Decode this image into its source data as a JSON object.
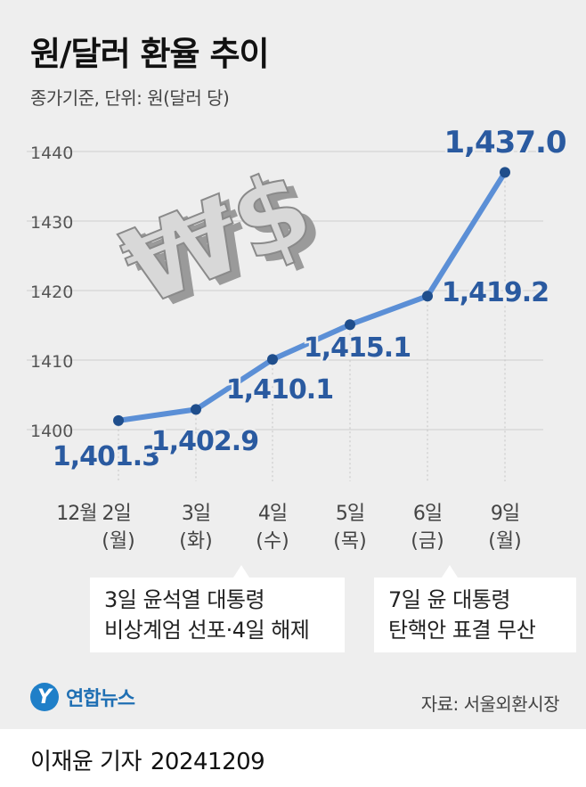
{
  "title": "원/달러 환율 추이",
  "subtitle": "종가기준, 단위: 원(달러 당)",
  "chart_data": {
    "type": "line",
    "x": [
      "12월 2일 (월)",
      "3일 (화)",
      "4일 (수)",
      "5일 (목)",
      "6일 (금)",
      "9일 (월)"
    ],
    "x_ticks": [
      {
        "line1": "12월 2일",
        "line2": "(월)"
      },
      {
        "line1": "3일",
        "line2": "(화)"
      },
      {
        "line1": "4일",
        "line2": "(수)"
      },
      {
        "line1": "5일",
        "line2": "(목)"
      },
      {
        "line1": "6일",
        "line2": "(금)"
      },
      {
        "line1": "9일",
        "line2": "(월)"
      }
    ],
    "values": [
      1401.3,
      1402.9,
      1410.1,
      1415.1,
      1419.2,
      1437.0
    ],
    "value_labels": [
      "1,401.3",
      "1,402.9",
      "1,410.1",
      "1,415.1",
      "1,419.2",
      "1,437.0"
    ],
    "y_ticks": [
      1400,
      1410,
      1420,
      1430,
      1440
    ],
    "ylim": [
      1400,
      1440
    ],
    "grid": true,
    "line_color": "#5b8fd6",
    "point_color": "#1f4e8c",
    "label_color": "#2a5aa0"
  },
  "annotations": [
    {
      "line1": "3일 윤석열 대통령",
      "line2": "비상계엄 선포·4일 해제"
    },
    {
      "line1": "7일 윤 대통령",
      "line2": "탄핵안 표결 무산"
    }
  ],
  "logo": {
    "mark": "Y",
    "text": "연합뉴스"
  },
  "source": "자료: 서울외환시장",
  "byline": {
    "reporter": "이재윤 기자",
    "date": "20241209"
  }
}
